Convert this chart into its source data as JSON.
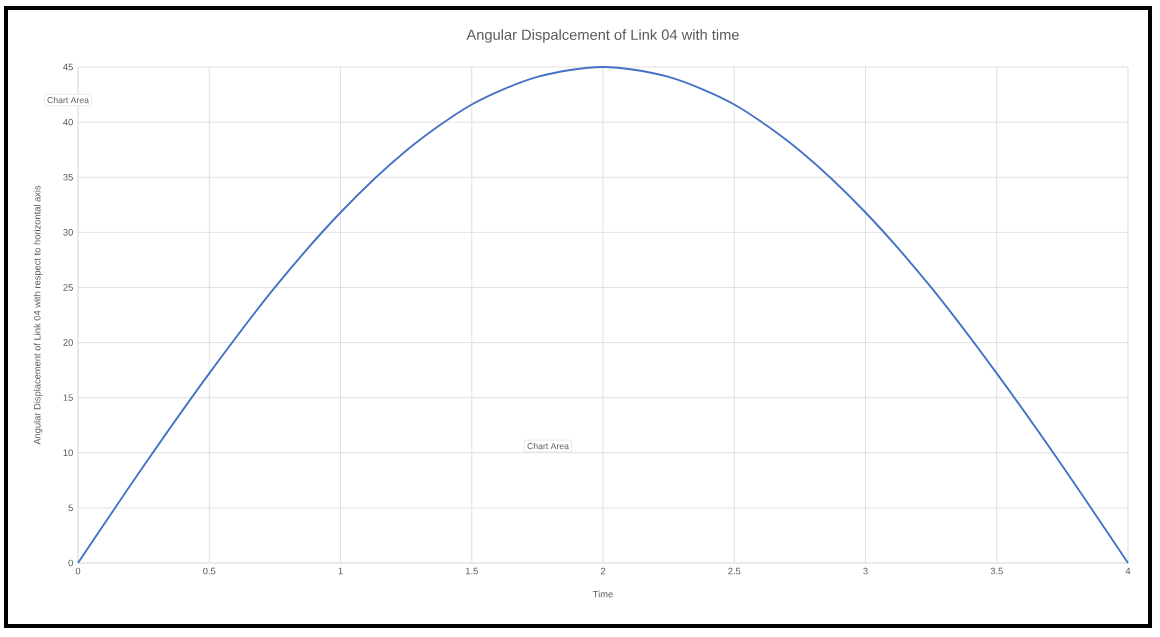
{
  "chart_data": {
    "type": "line",
    "title": "Angular Dispalcement of Link 04 with time",
    "xlabel": "Time",
    "ylabel": "Angular Displacement of Link 04 with respect to horizontal axis",
    "x": [
      0,
      0.25,
      0.5,
      0.75,
      1,
      1.25,
      1.5,
      1.75,
      2,
      2.25,
      2.5,
      2.75,
      3,
      3.25,
      3.5,
      3.75,
      4
    ],
    "series": [
      {
        "color": "#4472c4",
        "values": [
          0,
          8.8,
          17.2,
          25,
          31.8,
          37.4,
          41.6,
          44.1,
          45,
          44.1,
          41.6,
          37.4,
          31.8,
          25,
          17.2,
          8.8,
          0
        ]
      }
    ],
    "xlim": [
      0,
      4
    ],
    "ylim": [
      0,
      45
    ],
    "xticks": [
      0,
      0.5,
      1,
      1.5,
      2,
      2.5,
      3,
      3.5,
      4
    ],
    "yticks": [
      0,
      5,
      10,
      15,
      20,
      25,
      30,
      35,
      40,
      45
    ],
    "grid": true,
    "legend": false,
    "marker": "none",
    "line_style": "solid",
    "annotations": [
      "Chart Area",
      "Chart Area"
    ]
  }
}
